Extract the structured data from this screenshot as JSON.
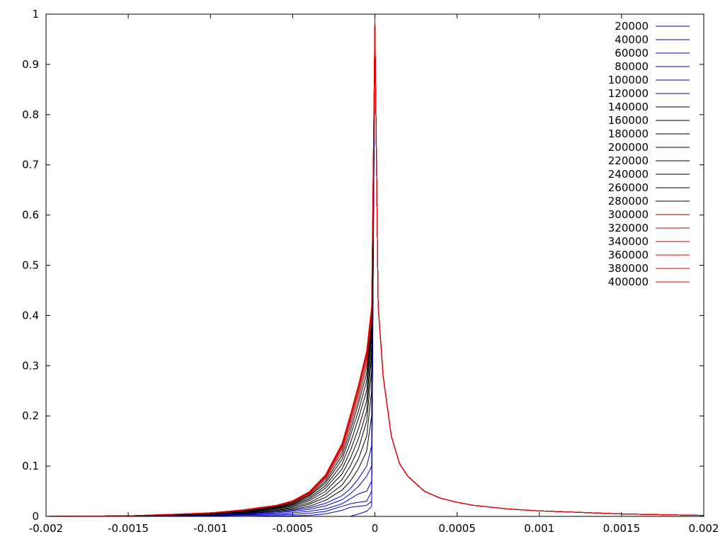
{
  "chart_data": {
    "type": "line",
    "title": "",
    "xlabel": "",
    "ylabel": "",
    "xlim": [
      -0.002,
      0.002
    ],
    "ylim": [
      0,
      1
    ],
    "grid": false,
    "legend_position": "top-right",
    "x_ticks": [
      {
        "value": -0.002,
        "label": "-0.002"
      },
      {
        "value": -0.0015,
        "label": "-0.0015"
      },
      {
        "value": -0.001,
        "label": "-0.001"
      },
      {
        "value": -0.0005,
        "label": "-0.0005"
      },
      {
        "value": 0,
        "label": "0"
      },
      {
        "value": 0.0005,
        "label": "0.0005"
      },
      {
        "value": 0.001,
        "label": "0.001"
      },
      {
        "value": 0.0015,
        "label": "0.0015"
      },
      {
        "value": 0.002,
        "label": "0.002"
      }
    ],
    "y_ticks": [
      {
        "value": 0,
        "label": "0"
      },
      {
        "value": 0.1,
        "label": "0.1"
      },
      {
        "value": 0.2,
        "label": "0.2"
      },
      {
        "value": 0.3,
        "label": "0.3"
      },
      {
        "value": 0.4,
        "label": "0.4"
      },
      {
        "value": 0.5,
        "label": "0.5"
      },
      {
        "value": 0.6,
        "label": "0.6"
      },
      {
        "value": 0.7,
        "label": "0.7"
      },
      {
        "value": 0.8,
        "label": "0.8"
      },
      {
        "value": 0.9,
        "label": "0.9"
      },
      {
        "value": 1,
        "label": "1"
      }
    ],
    "x": [
      -0.002,
      -0.0015,
      -0.001,
      -0.0008,
      -0.0006,
      -0.0005,
      -0.0004,
      -0.0003,
      -0.0002,
      -0.00015,
      -0.0001,
      -5e-05,
      -2e-05,
      0,
      2e-05,
      5e-05,
      0.0001,
      0.00015,
      0.0002,
      0.0003,
      0.0004,
      0.0005,
      0.0006,
      0.0008,
      0.001,
      0.0015,
      0.002
    ],
    "series": [
      {
        "name": "20000",
        "color": "#0000cc",
        "values": [
          0,
          0,
          0,
          0,
          0,
          0,
          0,
          0,
          0,
          0,
          0.005,
          0.01,
          0.02,
          0.98,
          0.42,
          0.28,
          0.16,
          0.105,
          0.08,
          0.05,
          0.036,
          0.028,
          0.022,
          0.015,
          0.011,
          0.005,
          0.002
        ]
      },
      {
        "name": "40000",
        "color": "#0000cc",
        "values": [
          0,
          0,
          0,
          0,
          0.001,
          0.001,
          0.002,
          0.005,
          0.012,
          0.018,
          0.02,
          0.022,
          0.03,
          0.98,
          0.42,
          0.28,
          0.16,
          0.105,
          0.08,
          0.05,
          0.036,
          0.028,
          0.022,
          0.015,
          0.011,
          0.005,
          0.002
        ]
      },
      {
        "name": "60000",
        "color": "#0000cc",
        "values": [
          0,
          0,
          0.001,
          0.002,
          0.003,
          0.004,
          0.006,
          0.01,
          0.02,
          0.025,
          0.028,
          0.03,
          0.05,
          0.98,
          0.42,
          0.28,
          0.16,
          0.105,
          0.08,
          0.05,
          0.036,
          0.028,
          0.022,
          0.015,
          0.011,
          0.005,
          0.002
        ]
      },
      {
        "name": "80000",
        "color": "#0000cc",
        "values": [
          0,
          0,
          0.002,
          0.003,
          0.005,
          0.007,
          0.01,
          0.015,
          0.025,
          0.035,
          0.045,
          0.05,
          0.07,
          0.98,
          0.42,
          0.28,
          0.16,
          0.105,
          0.08,
          0.05,
          0.036,
          0.028,
          0.022,
          0.015,
          0.011,
          0.005,
          0.002
        ]
      },
      {
        "name": "100000",
        "color": "#0000cc",
        "values": [
          0,
          0.001,
          0.003,
          0.004,
          0.007,
          0.01,
          0.014,
          0.021,
          0.033,
          0.045,
          0.06,
          0.08,
          0.1,
          0.98,
          0.42,
          0.28,
          0.16,
          0.105,
          0.08,
          0.05,
          0.036,
          0.028,
          0.022,
          0.015,
          0.011,
          0.005,
          0.002
        ]
      },
      {
        "name": "120000",
        "color": "#0000cc",
        "values": [
          0,
          0.001,
          0.003,
          0.005,
          0.009,
          0.012,
          0.017,
          0.026,
          0.041,
          0.055,
          0.075,
          0.1,
          0.14,
          0.98,
          0.42,
          0.28,
          0.16,
          0.105,
          0.08,
          0.05,
          0.036,
          0.028,
          0.022,
          0.015,
          0.011,
          0.005,
          0.002
        ]
      },
      {
        "name": "140000",
        "color": "#000000",
        "values": [
          0,
          0.001,
          0.004,
          0.006,
          0.01,
          0.014,
          0.02,
          0.032,
          0.052,
          0.07,
          0.095,
          0.13,
          0.2,
          0.98,
          0.42,
          0.28,
          0.16,
          0.105,
          0.08,
          0.05,
          0.036,
          0.028,
          0.022,
          0.015,
          0.011,
          0.005,
          0.002
        ]
      },
      {
        "name": "160000",
        "color": "#000000",
        "values": [
          0,
          0.001,
          0.004,
          0.007,
          0.012,
          0.016,
          0.024,
          0.038,
          0.062,
          0.085,
          0.115,
          0.16,
          0.25,
          0.98,
          0.42,
          0.28,
          0.16,
          0.105,
          0.08,
          0.05,
          0.036,
          0.028,
          0.022,
          0.015,
          0.011,
          0.005,
          0.002
        ]
      },
      {
        "name": "180000",
        "color": "#000000",
        "values": [
          0,
          0.001,
          0.005,
          0.008,
          0.013,
          0.018,
          0.027,
          0.044,
          0.073,
          0.1,
          0.135,
          0.19,
          0.29,
          0.98,
          0.42,
          0.28,
          0.16,
          0.105,
          0.08,
          0.05,
          0.036,
          0.028,
          0.022,
          0.015,
          0.011,
          0.005,
          0.002
        ]
      },
      {
        "name": "200000",
        "color": "#000000",
        "values": [
          0,
          0.001,
          0.005,
          0.009,
          0.015,
          0.02,
          0.031,
          0.05,
          0.084,
          0.115,
          0.155,
          0.21,
          0.32,
          0.98,
          0.42,
          0.28,
          0.16,
          0.105,
          0.08,
          0.05,
          0.036,
          0.028,
          0.022,
          0.015,
          0.011,
          0.005,
          0.002
        ]
      },
      {
        "name": "220000",
        "color": "#000000",
        "values": [
          0,
          0.001,
          0.005,
          0.01,
          0.016,
          0.022,
          0.034,
          0.056,
          0.094,
          0.13,
          0.175,
          0.23,
          0.34,
          0.98,
          0.42,
          0.28,
          0.16,
          0.105,
          0.08,
          0.05,
          0.036,
          0.028,
          0.022,
          0.015,
          0.011,
          0.005,
          0.002
        ]
      },
      {
        "name": "240000",
        "color": "#000000",
        "values": [
          0,
          0.001,
          0.006,
          0.01,
          0.017,
          0.024,
          0.037,
          0.061,
          0.104,
          0.145,
          0.195,
          0.25,
          0.36,
          0.98,
          0.42,
          0.28,
          0.16,
          0.105,
          0.08,
          0.05,
          0.036,
          0.028,
          0.022,
          0.015,
          0.011,
          0.005,
          0.002
        ]
      },
      {
        "name": "260000",
        "color": "#000000",
        "values": [
          0,
          0.001,
          0.006,
          0.011,
          0.018,
          0.025,
          0.04,
          0.066,
          0.113,
          0.16,
          0.21,
          0.27,
          0.37,
          0.98,
          0.42,
          0.28,
          0.16,
          0.105,
          0.08,
          0.05,
          0.036,
          0.028,
          0.022,
          0.015,
          0.011,
          0.005,
          0.002
        ]
      },
      {
        "name": "280000",
        "color": "#000000",
        "values": [
          0,
          0.001,
          0.006,
          0.011,
          0.019,
          0.027,
          0.042,
          0.07,
          0.121,
          0.17,
          0.225,
          0.285,
          0.38,
          0.98,
          0.42,
          0.28,
          0.16,
          0.105,
          0.08,
          0.05,
          0.036,
          0.028,
          0.022,
          0.015,
          0.011,
          0.005,
          0.002
        ]
      },
      {
        "name": "300000",
        "color": "#880000",
        "values": [
          0,
          0.001,
          0.006,
          0.012,
          0.02,
          0.028,
          0.044,
          0.074,
          0.128,
          0.18,
          0.235,
          0.3,
          0.39,
          0.98,
          0.42,
          0.28,
          0.16,
          0.105,
          0.08,
          0.05,
          0.036,
          0.028,
          0.022,
          0.015,
          0.011,
          0.005,
          0.002
        ]
      },
      {
        "name": "320000",
        "color": "#bb0000",
        "values": [
          0,
          0.001,
          0.006,
          0.012,
          0.021,
          0.029,
          0.046,
          0.077,
          0.134,
          0.188,
          0.245,
          0.31,
          0.4,
          0.98,
          0.42,
          0.28,
          0.16,
          0.105,
          0.08,
          0.05,
          0.036,
          0.028,
          0.022,
          0.015,
          0.011,
          0.005,
          0.002
        ]
      },
      {
        "name": "340000",
        "color": "#cc0000",
        "values": [
          0,
          0.001,
          0.007,
          0.012,
          0.021,
          0.03,
          0.047,
          0.079,
          0.138,
          0.194,
          0.252,
          0.318,
          0.405,
          0.98,
          0.42,
          0.28,
          0.16,
          0.105,
          0.08,
          0.05,
          0.036,
          0.028,
          0.022,
          0.015,
          0.011,
          0.005,
          0.002
        ]
      },
      {
        "name": "360000",
        "color": "#dd0000",
        "values": [
          0,
          0.001,
          0.007,
          0.013,
          0.022,
          0.03,
          0.048,
          0.081,
          0.141,
          0.198,
          0.257,
          0.324,
          0.41,
          0.98,
          0.42,
          0.28,
          0.16,
          0.105,
          0.08,
          0.05,
          0.036,
          0.028,
          0.022,
          0.015,
          0.011,
          0.005,
          0.002
        ]
      },
      {
        "name": "380000",
        "color": "#dd0000",
        "values": [
          0,
          0.001,
          0.007,
          0.013,
          0.022,
          0.031,
          0.049,
          0.082,
          0.143,
          0.2,
          0.26,
          0.328,
          0.415,
          0.98,
          0.42,
          0.28,
          0.16,
          0.105,
          0.08,
          0.05,
          0.036,
          0.028,
          0.022,
          0.015,
          0.011,
          0.005,
          0.002
        ]
      },
      {
        "name": "400000",
        "color": "#ee0000",
        "values": [
          0,
          0.001,
          0.007,
          0.013,
          0.022,
          0.031,
          0.049,
          0.083,
          0.145,
          0.202,
          0.262,
          0.33,
          0.42,
          1.0,
          0.42,
          0.28,
          0.16,
          0.105,
          0.08,
          0.05,
          0.036,
          0.028,
          0.022,
          0.015,
          0.011,
          0.005,
          0.002
        ]
      }
    ]
  }
}
